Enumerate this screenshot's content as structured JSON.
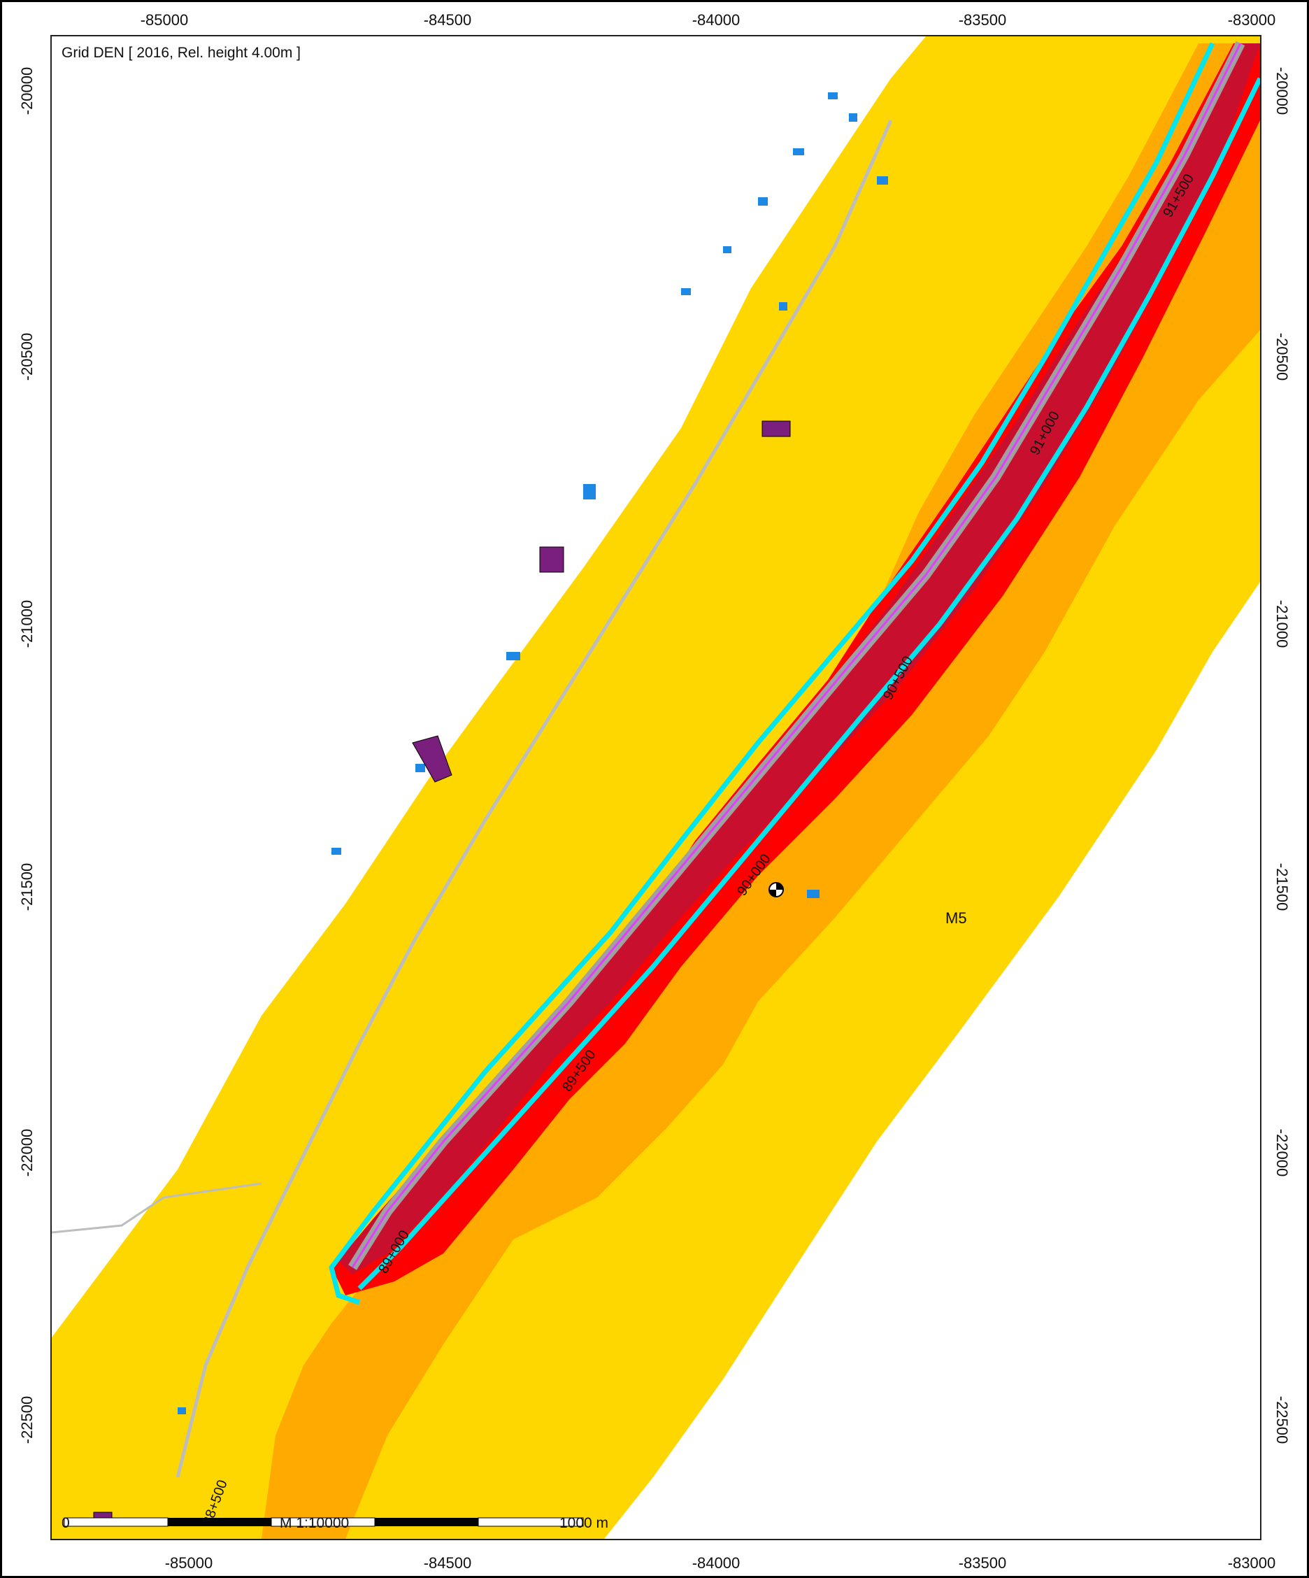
{
  "map": {
    "title": "Grid DEN  [ 2016, Rel. height  4.00m ]",
    "zone_label": "M5",
    "scale_bar": {
      "start_label": "0",
      "ratio_label": "M 1:10000",
      "end_label": "1000 m"
    },
    "x_ticks": [
      "-85000",
      "-84500",
      "-84000",
      "-83500",
      "-83000"
    ],
    "y_ticks": [
      "-20000",
      "-20500",
      "-21000",
      "-21500",
      "-22000",
      "-22500"
    ],
    "chainage_labels": [
      "88+500",
      "89+000",
      "89+500",
      "90+000",
      "90+500",
      "91+000",
      "91+500"
    ],
    "colors": {
      "outer_band": "#FFD700",
      "middle_band": "#FFAA00",
      "inner_band": "#FF0000",
      "core_band": "#C8102E",
      "roads": "#BDBDBD",
      "buildings": "#1E88E5",
      "industrial_buildings": "#7B1F7F",
      "contour_line": "#00E5EE",
      "track_line": "#E040FB"
    }
  }
}
